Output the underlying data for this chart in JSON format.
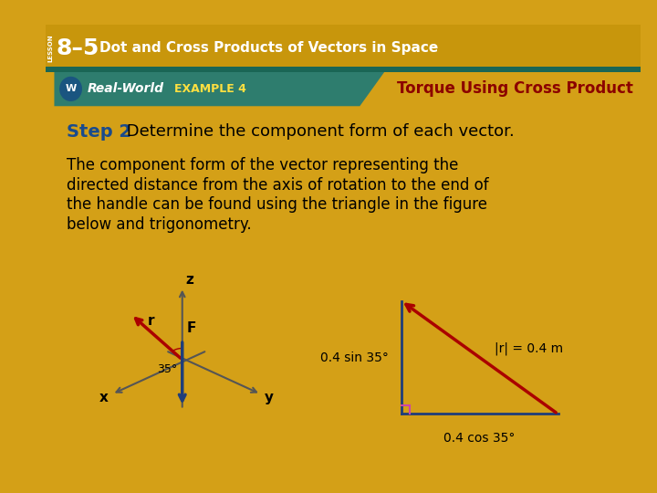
{
  "outer_bg": "#D4A017",
  "title_bar_bg": "#C8960C",
  "header_bg": "#2E7D6E",
  "main_bg": "#FFFFFF",
  "lesson_text": "LESSON",
  "title_number": "8–5",
  "title_rest": "Dot and Cross Products of Vectors in Space",
  "example_label": "EXAMPLE 4",
  "example_title": "Torque Using Cross Product",
  "example_title_color": "#8B0000",
  "step_label": "Step 2",
  "step_label_color": "#1A4B8C",
  "step_text": " Determine the component form of each vector.",
  "body_line1": "The component form of the vector representing the",
  "body_line2": "directed distance from the axis of rotation to the end of",
  "body_line3": "the handle can be found using the triangle in the figure",
  "body_line4": "below and trigonometry.",
  "axis_color": "#555555",
  "red_color": "#AA0000",
  "blue_color": "#1F3E7A",
  "tri_blue": "#1F3E7A",
  "tri_red": "#AA0000",
  "tri_pink": "#CC44AA"
}
